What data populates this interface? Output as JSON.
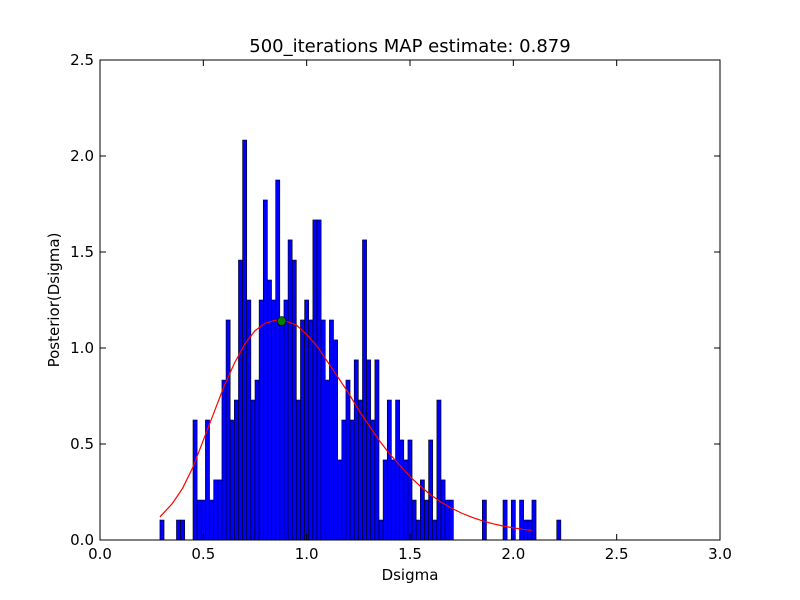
{
  "chart_data": {
    "type": "bar",
    "title": "500_iterations MAP estimate: 0.879",
    "xlabel": "Dsigma",
    "ylabel": "Posterior(Dsigma)",
    "xlim": [
      0.0,
      3.0
    ],
    "ylim": [
      0.0,
      2.5
    ],
    "x_ticks": [
      "0.0",
      "0.5",
      "1.0",
      "1.5",
      "2.0",
      "2.5",
      "3.0"
    ],
    "y_ticks": [
      "0.0",
      "0.5",
      "1.0",
      "1.5",
      "2.0",
      "2.5"
    ],
    "bin_start": 0.29,
    "bin_width": 0.02,
    "histogram_values": [
      0.104,
      0,
      0,
      0,
      0.104,
      0.104,
      0,
      0,
      0.625,
      0.208,
      0.208,
      0.625,
      0.208,
      0.313,
      0.313,
      0.833,
      1.146,
      0.625,
      0.729,
      1.458,
      2.083,
      1.25,
      0.729,
      0.833,
      1.25,
      1.771,
      1.354,
      1.25,
      1.875,
      1.146,
      1.25,
      1.563,
      1.458,
      0.729,
      1.146,
      1.25,
      1.146,
      1.667,
      1.667,
      1.146,
      0.833,
      1.146,
      1.042,
      0.417,
      0.625,
      0.833,
      0.625,
      0.938,
      0.729,
      1.563,
      0.938,
      0.625,
      0.938,
      0.104,
      0.417,
      0.729,
      0.417,
      0.729,
      0.521,
      0.417,
      0.521,
      0.208,
      0.104,
      0.313,
      0.208,
      0.521,
      0.104,
      0.729,
      0.313,
      0.208,
      0.208,
      0,
      0,
      0,
      0,
      0,
      0,
      0,
      0.208,
      0,
      0,
      0,
      0,
      0.208,
      0,
      0.208,
      0,
      0.208,
      0.104,
      0.104,
      0.208,
      0,
      0,
      0,
      0,
      0,
      0.104
    ],
    "fit_curve": {
      "color": "#ff0000",
      "points": [
        [
          0.29,
          0.12
        ],
        [
          0.35,
          0.19
        ],
        [
          0.4,
          0.27
        ],
        [
          0.45,
          0.38
        ],
        [
          0.5,
          0.52
        ],
        [
          0.55,
          0.66
        ],
        [
          0.6,
          0.8
        ],
        [
          0.65,
          0.92
        ],
        [
          0.7,
          1.02
        ],
        [
          0.75,
          1.09
        ],
        [
          0.8,
          1.13
        ],
        [
          0.85,
          1.145
        ],
        [
          0.9,
          1.14
        ],
        [
          0.95,
          1.12
        ],
        [
          1.0,
          1.07
        ],
        [
          1.05,
          1.01
        ],
        [
          1.1,
          0.93
        ],
        [
          1.15,
          0.85
        ],
        [
          1.2,
          0.77
        ],
        [
          1.25,
          0.68
        ],
        [
          1.3,
          0.6
        ],
        [
          1.35,
          0.52
        ],
        [
          1.4,
          0.45
        ],
        [
          1.45,
          0.39
        ],
        [
          1.5,
          0.33
        ],
        [
          1.55,
          0.28
        ],
        [
          1.6,
          0.235
        ],
        [
          1.65,
          0.198
        ],
        [
          1.7,
          0.166
        ],
        [
          1.75,
          0.14
        ],
        [
          1.8,
          0.118
        ],
        [
          1.85,
          0.1
        ],
        [
          1.9,
          0.085
        ],
        [
          1.95,
          0.073
        ],
        [
          2.0,
          0.063
        ],
        [
          2.05,
          0.055
        ],
        [
          2.09,
          0.05
        ]
      ]
    },
    "map_point": {
      "x": 0.879,
      "y": 1.14,
      "color": "#008000"
    },
    "bar_color": "#0000ff",
    "grid": false
  }
}
